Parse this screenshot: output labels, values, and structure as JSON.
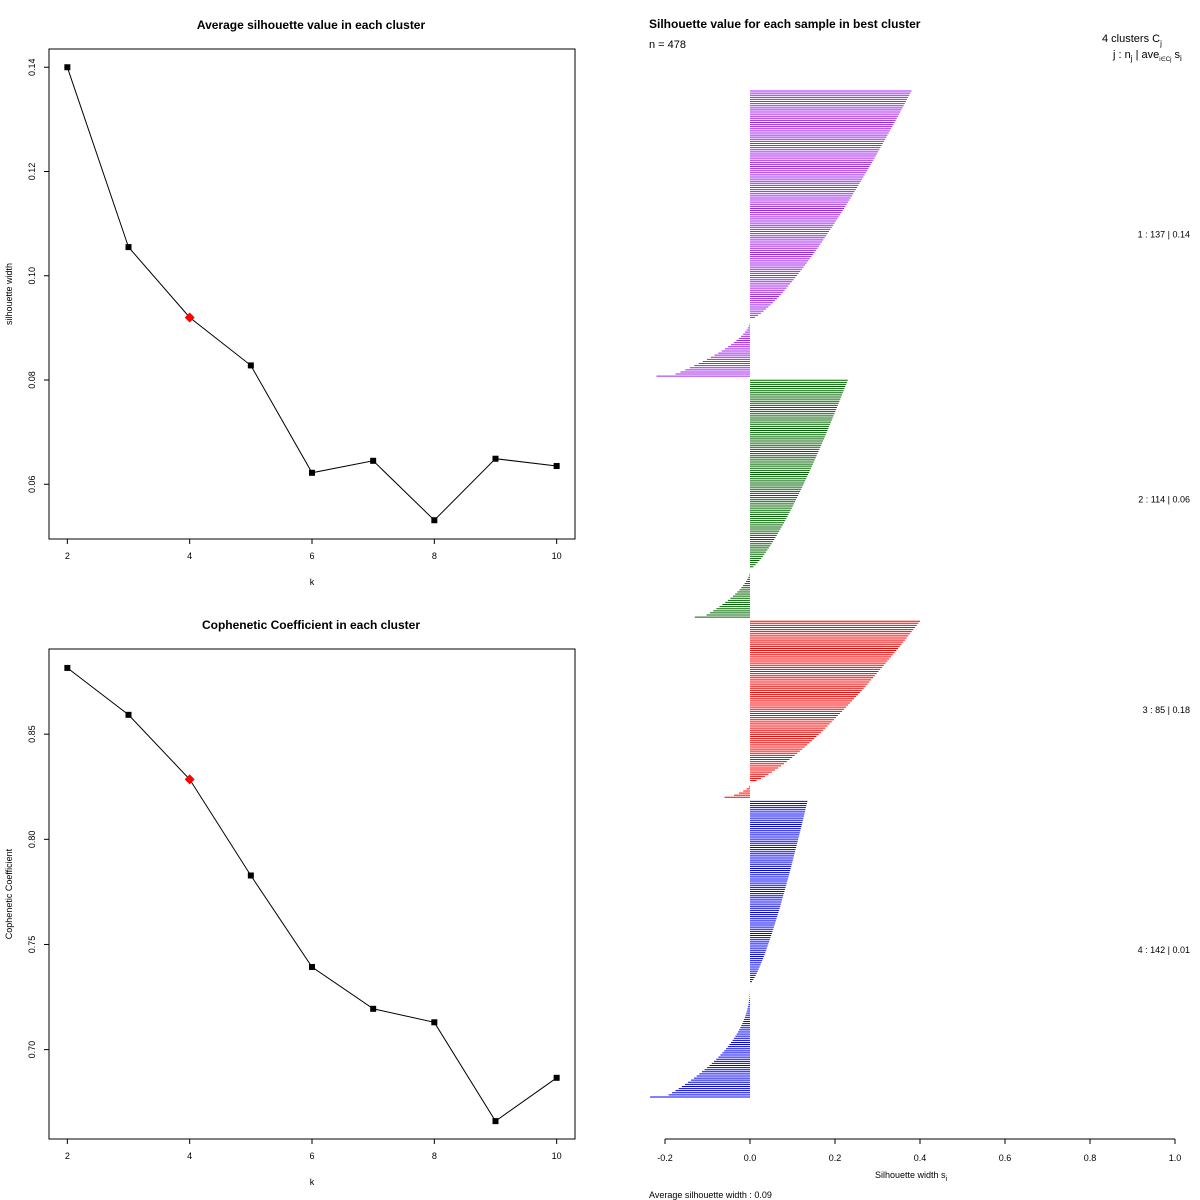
{
  "chart_data": [
    {
      "type": "line",
      "title": "Average silhouette value in each cluster",
      "xlabel": "k",
      "ylabel": "silhouette width",
      "x": [
        2,
        3,
        4,
        5,
        6,
        7,
        8,
        9,
        10
      ],
      "values": [
        0.14,
        0.1055,
        0.092,
        0.0828,
        0.0622,
        0.0645,
        0.0531,
        0.0649,
        0.0635
      ],
      "highlight_x": 4,
      "highlight_color": "#ff0000",
      "xlim": [
        1.7,
        10.3
      ],
      "ylim": [
        0.0495,
        0.1435
      ],
      "xticks": [
        "2",
        "4",
        "6",
        "8",
        "10"
      ],
      "yticks": [
        "0.06",
        "0.08",
        "0.10",
        "0.12",
        "0.14"
      ]
    },
    {
      "type": "line",
      "title": "Cophenetic Coefficient in each cluster",
      "xlabel": "k",
      "ylabel": "Cophenetic Coefficient",
      "x": [
        2,
        3,
        4,
        5,
        6,
        7,
        8,
        9,
        10
      ],
      "values": [
        0.8815,
        0.8592,
        0.8285,
        0.7828,
        0.7393,
        0.7194,
        0.713,
        0.666,
        0.6866
      ],
      "highlight_x": 4,
      "highlight_color": "#ff0000",
      "xlim": [
        1.7,
        10.3
      ],
      "ylim": [
        0.6575,
        0.8905
      ],
      "xticks": [
        "2",
        "4",
        "6",
        "8",
        "10"
      ],
      "yticks": [
        "0.70",
        "0.75",
        "0.80",
        "0.85"
      ]
    },
    {
      "type": "bar",
      "orientation": "horizontal",
      "title": "Silhouette value for each sample in best cluster",
      "subtitle": "n = 478",
      "xlabel": "Silhouette width s",
      "xlabel_sub": "i",
      "xlim": [
        -0.2,
        1.0
      ],
      "xticks": [
        "-0.2",
        "0.0",
        "0.2",
        "0.4",
        "0.6",
        "0.8",
        "1.0"
      ],
      "legend_title": "4 clusters  C",
      "legend_title_sub": "j",
      "legend_header": "j :  n",
      "legend_header_sub": "j",
      "legend_header_tail": " | ave",
      "legend_header_sub2": "i∈Cj",
      "legend_header_end": " s",
      "legend_header_end_sub": "i",
      "footer": "Average silhouette width :  0.09",
      "clusters": [
        {
          "id": 1,
          "n": 137,
          "avg": 0.14,
          "label": "1 :   137  |  0.14",
          "color": "#a020f0",
          "max": 0.38,
          "min": -0.22,
          "split": 0.8,
          "neg_pow": 0.6
        },
        {
          "id": 2,
          "n": 114,
          "avg": 0.06,
          "label": "2 :   114  |  0.06",
          "color": "#006400",
          "max": 0.23,
          "min": -0.13,
          "split": 0.8,
          "neg_pow": 0.6
        },
        {
          "id": 3,
          "n": 85,
          "avg": 0.18,
          "label": "3 :   85  |  0.18",
          "color": "#ff0000",
          "max": 0.4,
          "min": -0.06,
          "split": 0.92,
          "neg_pow": 0.6
        },
        {
          "id": 4,
          "n": 142,
          "avg": 0.01,
          "label": "4 :   142  |  0.01",
          "color": "#0000ff",
          "max": 0.135,
          "min": -0.235,
          "split": 0.62,
          "neg_pow": 0.45
        }
      ]
    }
  ]
}
